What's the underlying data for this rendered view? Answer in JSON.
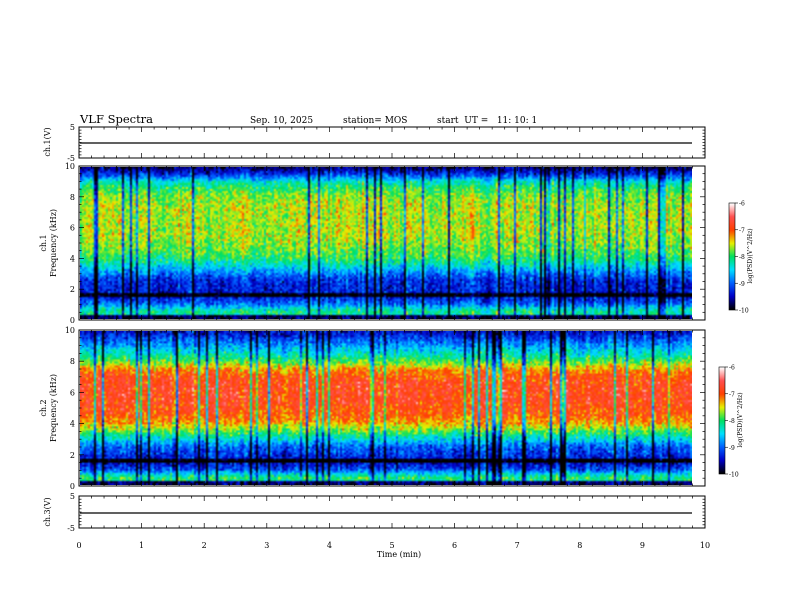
{
  "header": {
    "title": "VLF Spectra",
    "date": "Sep. 10, 2025",
    "station": "station= MOS",
    "start": "start  UT =   11: 10: 1"
  },
  "chart_data": [
    {
      "type": "line",
      "name": "ch.1 voltage",
      "ylabel": "ch.1(V)",
      "ylim": [
        -5,
        5
      ],
      "yticks": [
        5,
        -5
      ],
      "xlim": [
        0,
        10
      ],
      "series": [
        {
          "name": "ch.1",
          "approx_value": -0.2
        }
      ]
    },
    {
      "type": "heatmap",
      "name": "ch.1 spectrogram",
      "ylabel_top": "ch.1",
      "ylabel": "Frequency (kHz)",
      "ylim": [
        0,
        10
      ],
      "yticks": [
        0,
        2,
        4,
        6,
        8,
        10
      ],
      "xlim": [
        0,
        9.85
      ],
      "colorbar": {
        "label": "log(PSD)(V^2/Hz)",
        "ticks": [
          -6,
          -7,
          -8,
          -9,
          -10
        ],
        "range": [
          -10,
          -6
        ]
      },
      "profile": [
        {
          "f": 0.0,
          "v": -8.4
        },
        {
          "f": 0.5,
          "v": -8.1
        },
        {
          "f": 1.0,
          "v": -9.0
        },
        {
          "f": 1.5,
          "v": -9.4
        },
        {
          "f": 2.0,
          "v": -9.3
        },
        {
          "f": 2.5,
          "v": -9.3
        },
        {
          "f": 3.0,
          "v": -8.9
        },
        {
          "f": 3.5,
          "v": -8.4
        },
        {
          "f": 4.0,
          "v": -8.0
        },
        {
          "f": 4.5,
          "v": -7.8
        },
        {
          "f": 5.0,
          "v": -7.7
        },
        {
          "f": 5.5,
          "v": -7.6
        },
        {
          "f": 6.0,
          "v": -7.6
        },
        {
          "f": 6.5,
          "v": -7.6
        },
        {
          "f": 7.0,
          "v": -7.6
        },
        {
          "f": 7.5,
          "v": -7.6
        },
        {
          "f": 8.0,
          "v": -7.7
        },
        {
          "f": 8.5,
          "v": -7.9
        },
        {
          "f": 9.0,
          "v": -8.3
        },
        {
          "f": 9.5,
          "v": -9.2
        },
        {
          "f": 10.0,
          "v": -9.8
        }
      ]
    },
    {
      "type": "heatmap",
      "name": "ch.2 spectrogram",
      "ylabel_top": "ch.2",
      "ylabel": "Frequency (kHz)",
      "ylim": [
        0,
        10
      ],
      "yticks": [
        0,
        2,
        4,
        6,
        8,
        10
      ],
      "xlim": [
        0,
        9.85
      ],
      "colorbar": {
        "label": "log(PSD)(V^2/Hz)",
        "ticks": [
          -6,
          -7,
          -8,
          -9,
          -10
        ],
        "range": [
          -10,
          -6
        ]
      },
      "profile": [
        {
          "f": 0.0,
          "v": -8.3
        },
        {
          "f": 0.5,
          "v": -8.0
        },
        {
          "f": 1.0,
          "v": -9.1
        },
        {
          "f": 1.5,
          "v": -9.5
        },
        {
          "f": 2.0,
          "v": -9.2
        },
        {
          "f": 2.5,
          "v": -9.0
        },
        {
          "f": 3.0,
          "v": -8.4
        },
        {
          "f": 3.5,
          "v": -7.8
        },
        {
          "f": 4.0,
          "v": -7.3
        },
        {
          "f": 4.5,
          "v": -7.0
        },
        {
          "f": 5.0,
          "v": -6.9
        },
        {
          "f": 5.5,
          "v": -6.8
        },
        {
          "f": 6.0,
          "v": -6.8
        },
        {
          "f": 6.5,
          "v": -6.8
        },
        {
          "f": 7.0,
          "v": -6.9
        },
        {
          "f": 7.5,
          "v": -7.2
        },
        {
          "f": 8.0,
          "v": -7.8
        },
        {
          "f": 8.5,
          "v": -8.3
        },
        {
          "f": 9.0,
          "v": -8.7
        },
        {
          "f": 9.5,
          "v": -9.1
        },
        {
          "f": 10.0,
          "v": -9.5
        }
      ]
    },
    {
      "type": "line",
      "name": "ch.3 voltage",
      "ylabel": "ch.3(V)",
      "ylim": [
        -5,
        5
      ],
      "yticks": [
        5,
        -5
      ],
      "xlim": [
        0,
        10
      ],
      "series": [
        {
          "name": "ch.3",
          "approx_value": -0.3
        }
      ]
    }
  ],
  "x_axis": {
    "label": "Time  (min)",
    "ticks": [
      0,
      1,
      2,
      3,
      4,
      5,
      6,
      7,
      8,
      9,
      10
    ]
  },
  "colors": {
    "colormap": [
      "#000000",
      "#0000c8",
      "#0060ff",
      "#00e0ff",
      "#00e060",
      "#e8f000",
      "#ff4000",
      "#ff5050",
      "#ffffff"
    ]
  }
}
